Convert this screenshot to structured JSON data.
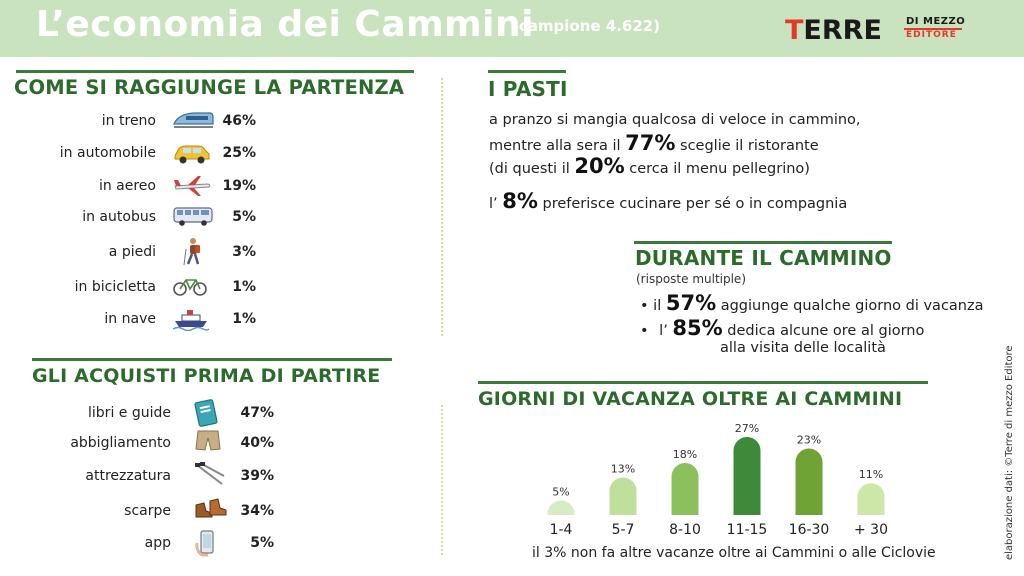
{
  "header": {
    "title": "L’economia dei Cammini",
    "sample": "(campione 4.622)",
    "logo": {
      "main_a": "TERRE",
      "sub1": "DI MEZZO",
      "sub2": "EDITORE"
    }
  },
  "departure": {
    "title": "COME SI RAGGIUNGE LA PARTENZA",
    "rows": [
      {
        "label": "in treno",
        "value": "46%",
        "icon": "train-icon"
      },
      {
        "label": "in automobile",
        "value": "25%",
        "icon": "car-icon"
      },
      {
        "label": "in aereo",
        "value": "19%",
        "icon": "airplane-icon"
      },
      {
        "label": "in autobus",
        "value": "5%",
        "icon": "bus-icon"
      },
      {
        "label": "a piedi",
        "value": "3%",
        "icon": "hiker-icon"
      },
      {
        "label": "in bicicletta",
        "value": "1%",
        "icon": "bicycle-icon"
      },
      {
        "label": "in nave",
        "value": "1%",
        "icon": "ship-icon"
      }
    ]
  },
  "purchases": {
    "title": "GLI ACQUISTI PRIMA DI PARTIRE",
    "rows": [
      {
        "label": "libri e guide",
        "value": "47%",
        "icon": "book-icon"
      },
      {
        "label": "abbigliamento",
        "value": "40%",
        "icon": "shorts-icon"
      },
      {
        "label": "attrezzatura",
        "value": "39%",
        "icon": "trekking-poles-icon"
      },
      {
        "label": "scarpe",
        "value": "34%",
        "icon": "boots-icon"
      },
      {
        "label": "app",
        "value": "5%",
        "icon": "smartphone-icon"
      }
    ]
  },
  "meals": {
    "title": "I PASTI",
    "line1": "a pranzo si mangia qualcosa di veloce in cammino,",
    "line2_a": "mentre alla sera il",
    "line2_num": "77%",
    "line2_b": "sceglie il ristorante",
    "line3_a": "(di questi il",
    "line3_num": "20%",
    "line3_b": "cerca il menu pellegrino)",
    "line4_a": "l’",
    "line4_num": "8%",
    "line4_b": "preferisce cucinare per sé o in compagnia"
  },
  "during": {
    "title": "DURANTE IL CAMMINO",
    "subtitle": "(risposte multiple)",
    "b1_a": "il",
    "b1_num": "57%",
    "b1_b": "aggiunge qualche giorno di vacanza",
    "b2_a": "l’",
    "b2_num": "85%",
    "b2_b": "dedica alcune ore al giorno",
    "b2_c": "alla visita delle località"
  },
  "chart_data": {
    "type": "bar",
    "title": "GIORNI DI VACANZA OLTRE AI CAMMINI",
    "categories": [
      "1-4",
      "5-7",
      "8-10",
      "11-15",
      "16-30",
      "+ 30"
    ],
    "values": [
      5,
      13,
      18,
      27,
      23,
      11
    ],
    "value_labels": [
      "5%",
      "13%",
      "18%",
      "27%",
      "23%",
      "11%"
    ],
    "colors": [
      "#d6ecc4",
      "#bfe09a",
      "#8cc05c",
      "#3d8a3a",
      "#6fa336",
      "#cde7a8"
    ],
    "ylim": [
      0,
      27
    ],
    "grid": false,
    "note": "il 3% non fa altre vacanze oltre ai Cammini o alle Ciclovie"
  },
  "credit": "elaborazione dati: ©Terre di mezzo Editore"
}
